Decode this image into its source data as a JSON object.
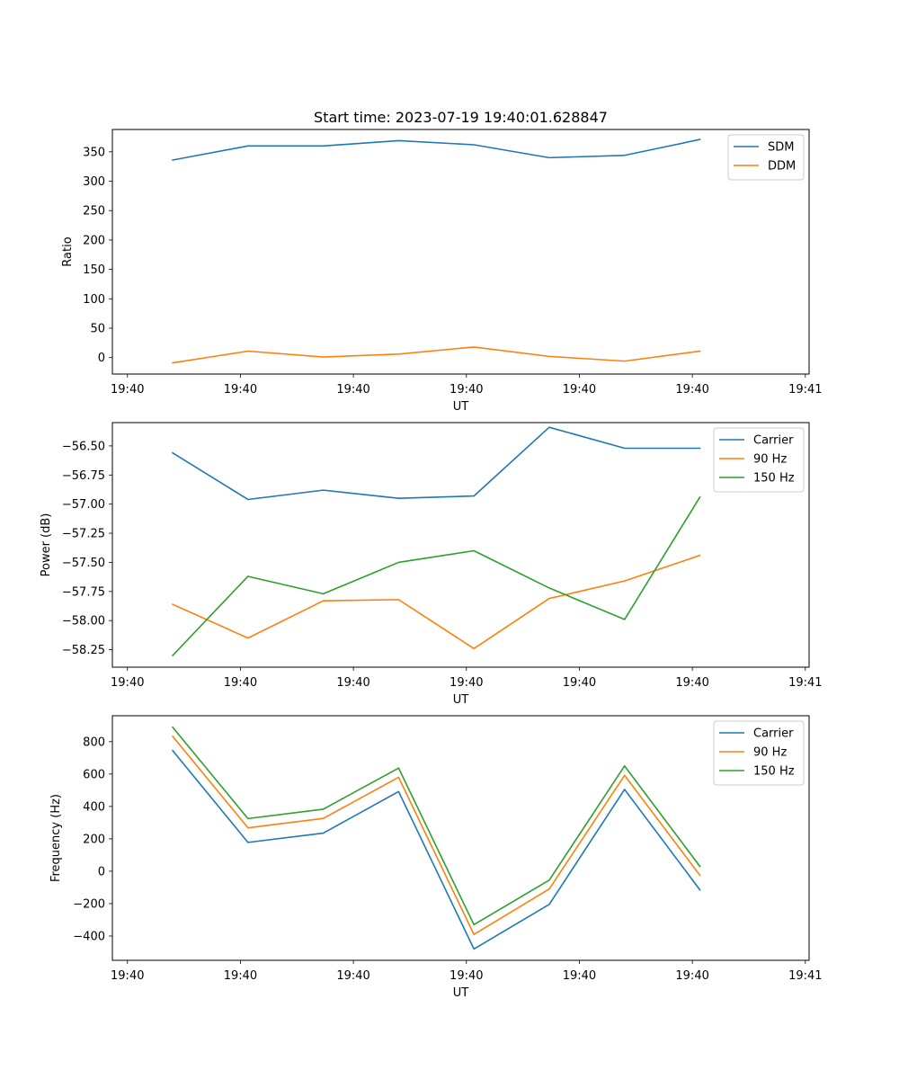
{
  "chart_data": [
    {
      "type": "line",
      "title": "Start time: 2023-07-19 19:40:01.628847",
      "xlabel": "UT",
      "ylabel": "Ratio",
      "x": [
        1,
        2,
        3,
        4,
        5,
        6,
        7,
        8
      ],
      "xlim": [
        0.2,
        9.45
      ],
      "xticks": [
        0.4,
        1.9,
        3.4,
        4.9,
        6.4,
        7.9,
        9.4
      ],
      "xtick_labels": [
        "19:40",
        "19:40",
        "19:40",
        "19:40",
        "19:40",
        "19:40",
        "19:41"
      ],
      "ylim": [
        -28,
        388
      ],
      "yticks": [
        0,
        50,
        100,
        150,
        200,
        250,
        300,
        350
      ],
      "ytick_labels": [
        "0",
        "50",
        "100",
        "150",
        "200",
        "250",
        "300",
        "350"
      ],
      "legend_position": "upper-right",
      "grid": false,
      "series": [
        {
          "name": "SDM",
          "color": "#1f77b4",
          "values": [
            336,
            360,
            360,
            369,
            362,
            340,
            344,
            371
          ]
        },
        {
          "name": "DDM",
          "color": "#ff7f0e",
          "values": [
            -9,
            11,
            1,
            6,
            18,
            2,
            -6,
            11
          ]
        }
      ]
    },
    {
      "type": "line",
      "title": "",
      "xlabel": "UT",
      "ylabel": "Power (dB)",
      "x": [
        1,
        2,
        3,
        4,
        5,
        6,
        7,
        8
      ],
      "xlim": [
        0.2,
        9.45
      ],
      "xticks": [
        0.4,
        1.9,
        3.4,
        4.9,
        6.4,
        7.9,
        9.4
      ],
      "xtick_labels": [
        "19:40",
        "19:40",
        "19:40",
        "19:40",
        "19:40",
        "19:40",
        "19:41"
      ],
      "ylim": [
        -58.4,
        -56.3
      ],
      "yticks": [
        -58.25,
        -58.0,
        -57.75,
        -57.5,
        -57.25,
        -57.0,
        -56.75,
        -56.5
      ],
      "ytick_labels": [
        "−58.25",
        "−58.00",
        "−57.75",
        "−57.50",
        "−57.25",
        "−57.00",
        "−56.75",
        "−56.50"
      ],
      "legend_position": "upper-right",
      "grid": false,
      "series": [
        {
          "name": "Carrier",
          "color": "#1f77b4",
          "values": [
            -56.56,
            -56.96,
            -56.88,
            -56.95,
            -56.93,
            -56.34,
            -56.52,
            -56.52
          ]
        },
        {
          "name": "90 Hz",
          "color": "#ff7f0e",
          "values": [
            -57.86,
            -58.15,
            -57.83,
            -57.82,
            -58.24,
            -57.81,
            -57.66,
            -57.44
          ]
        },
        {
          "name": "150 Hz",
          "color": "#2ca02c",
          "values": [
            -58.3,
            -57.62,
            -57.77,
            -57.5,
            -57.4,
            -57.72,
            -57.99,
            -56.94
          ]
        }
      ]
    },
    {
      "type": "line",
      "title": "",
      "xlabel": "UT",
      "ylabel": "Frequency (Hz)",
      "x": [
        1,
        2,
        3,
        4,
        5,
        6,
        7,
        8
      ],
      "xlim": [
        0.2,
        9.45
      ],
      "xticks": [
        0.4,
        1.9,
        3.4,
        4.9,
        6.4,
        7.9,
        9.4
      ],
      "xtick_labels": [
        "19:40",
        "19:40",
        "19:40",
        "19:40",
        "19:40",
        "19:40",
        "19:41"
      ],
      "ylim": [
        -550,
        960
      ],
      "yticks": [
        -400,
        -200,
        0,
        200,
        400,
        600,
        800
      ],
      "ytick_labels": [
        "−400",
        "−200",
        "0",
        "200",
        "400",
        "600",
        "800"
      ],
      "legend_position": "upper-right",
      "grid": false,
      "series": [
        {
          "name": "Carrier",
          "color": "#1f77b4",
          "values": [
            745,
            178,
            235,
            492,
            -480,
            -205,
            505,
            -115
          ]
        },
        {
          "name": "90 Hz",
          "color": "#ff7f0e",
          "values": [
            833,
            268,
            326,
            580,
            -390,
            -110,
            592,
            -25
          ]
        },
        {
          "name": "150 Hz",
          "color": "#2ca02c",
          "values": [
            889,
            325,
            383,
            637,
            -330,
            -55,
            650,
            30
          ]
        }
      ]
    }
  ]
}
